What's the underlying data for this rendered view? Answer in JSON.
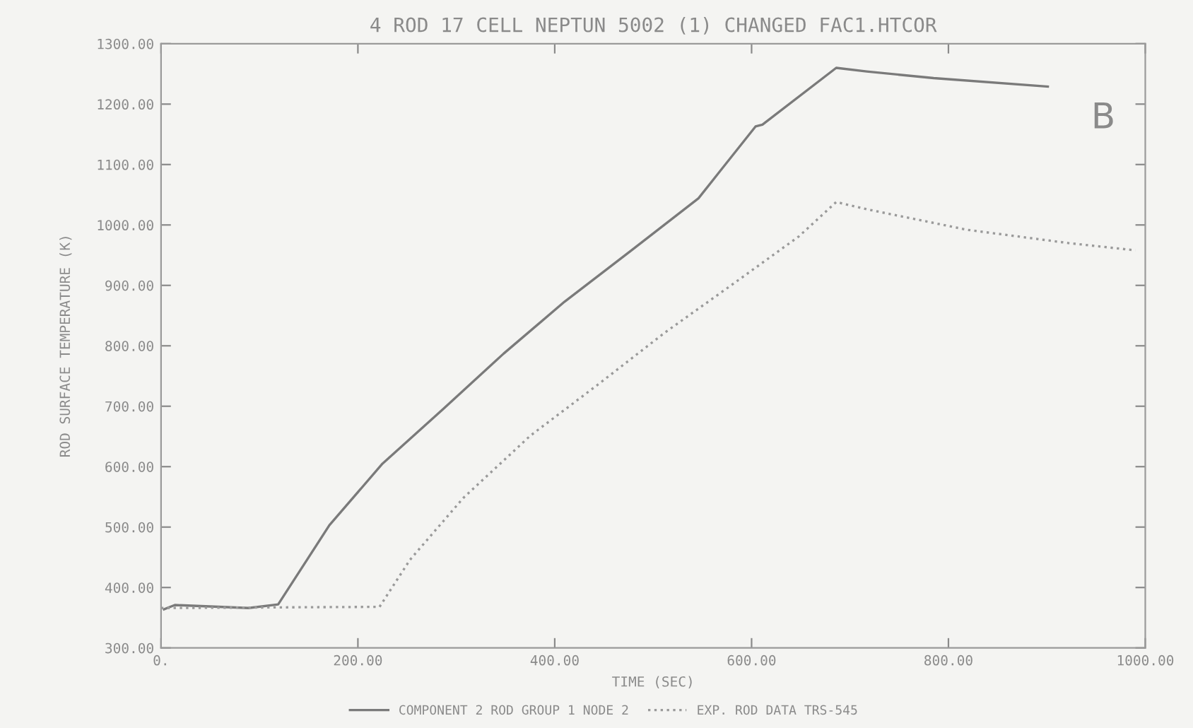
{
  "chart_data": {
    "type": "line",
    "title": "4 ROD 17 CELL NEPTUN 5002 (1) CHANGED FAC1.HTCOR",
    "xlabel": "TIME (SEC)",
    "ylabel": "ROD SURFACE TEMPERATURE (K)",
    "annotations": [
      "B"
    ],
    "series": [
      {
        "name": "COMPONENT 2 ROD GROUP 1 NODE 2",
        "color": "#7a7a7a",
        "line_style": "solid",
        "x": [
          3,
          14,
          89,
          119,
          171,
          225,
          287,
          348,
          410,
          478,
          546,
          604,
          611,
          686,
          717,
          785,
          901
        ],
        "values": [
          364,
          371,
          366,
          372,
          503,
          605,
          696,
          787,
          873,
          958,
          1044,
          1163,
          1166,
          1260,
          1254,
          1243,
          1229
        ]
      },
      {
        "name": "EXP. ROD DATA TRS-545",
        "color": "#9a9a9a",
        "line_style": "dotted",
        "x": [
          0,
          222,
          253,
          307,
          375,
          444,
          512,
          580,
          648,
          686,
          717,
          819,
          922,
          990
        ],
        "values": [
          366,
          368,
          446,
          548,
          651,
          736,
          822,
          901,
          981,
          1038,
          1026,
          992,
          970,
          958
        ]
      }
    ],
    "xlim": [
      0,
      1000
    ],
    "ylim": [
      300,
      1300
    ],
    "xticks": [
      {
        "value": 0,
        "label": "0."
      },
      {
        "value": 200,
        "label": "200.00"
      },
      {
        "value": 400,
        "label": "400.00"
      },
      {
        "value": 600,
        "label": "600.00"
      },
      {
        "value": 800,
        "label": "800.00"
      },
      {
        "value": 1000,
        "label": "1000.00"
      }
    ],
    "yticks": [
      {
        "value": 300,
        "label": "300.00"
      },
      {
        "value": 400,
        "label": "400.00"
      },
      {
        "value": 500,
        "label": "500.00"
      },
      {
        "value": 600,
        "label": "600.00"
      },
      {
        "value": 700,
        "label": "700.00"
      },
      {
        "value": 800,
        "label": "800.00"
      },
      {
        "value": 900,
        "label": "900.00"
      },
      {
        "value": 1000,
        "label": "1000.00"
      },
      {
        "value": 1100,
        "label": "1100.00"
      },
      {
        "value": 1200,
        "label": "1200.00"
      },
      {
        "value": 1300,
        "label": "1300.00"
      }
    ],
    "grid": false,
    "legend": "bottom",
    "marker": "none"
  }
}
